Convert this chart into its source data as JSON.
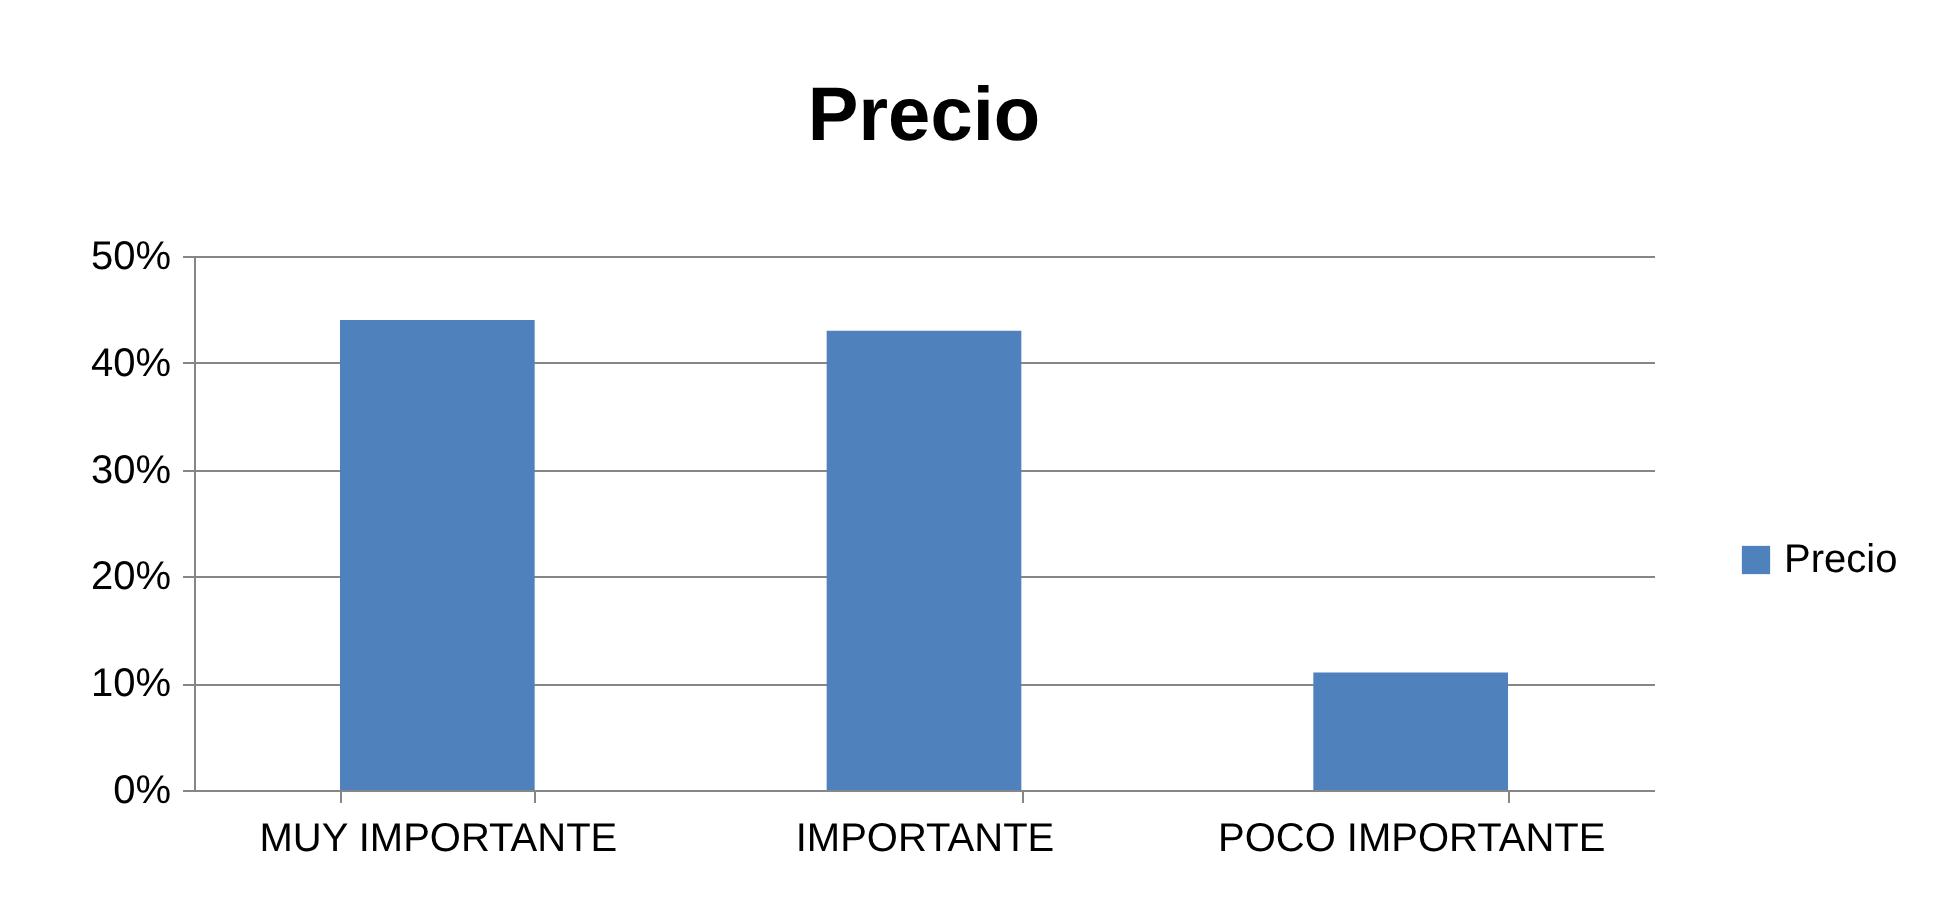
{
  "chart_data": {
    "type": "bar",
    "title": "Precio",
    "categories": [
      "MUY IMPORTANTE",
      "IMPORTANTE",
      "POCO IMPORTANTE"
    ],
    "series": [
      {
        "name": "Precio",
        "color": "#4f81bd",
        "values": [
          44,
          43,
          11
        ]
      }
    ],
    "ylim": [
      0,
      50
    ],
    "yticks": [
      {
        "value": 0,
        "label": "0%"
      },
      {
        "value": 10,
        "label": "10%"
      },
      {
        "value": 20,
        "label": "20%"
      },
      {
        "value": 30,
        "label": "30%"
      },
      {
        "value": 40,
        "label": "40%"
      },
      {
        "value": 50,
        "label": "50%"
      }
    ],
    "grid": "y",
    "legend": "right"
  }
}
